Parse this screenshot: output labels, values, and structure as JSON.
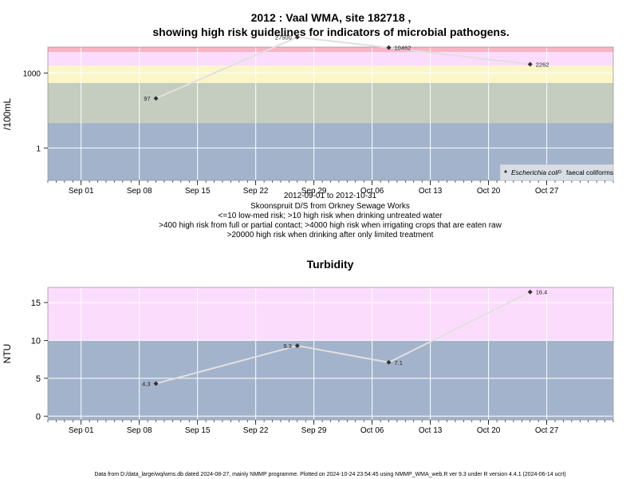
{
  "top_title_line1": "2012 : Vaal WMA, site 182718 ,",
  "top_title_line2": "showing high risk guidelines for indicators of microbial pathogens.",
  "top_ylabel": "/100mL",
  "date_range": "2012-09-01 to 2012-10-31",
  "site_description": "Skoonspruit D/S from Orkney Sewage Works",
  "guideline_lines": [
    "<=10 low-med risk; >10 high risk when drinking untreated water",
    ">400 high risk from full or partial contact; >4000 high risk when irrigating crops that are eaten raw",
    ">20000 high risk when drinking after only limited treatment"
  ],
  "legend": {
    "ecoli": "Escherichia coli",
    "faecal": "faecal coliforms"
  },
  "bottom_title": "Turbidity",
  "bottom_ylabel": "NTU",
  "footer": "Data from D:/data_large/wq/wms.db dated 2024-08-27, mainly NMMP programme. Plotted on 2024-10-24 23:54:45 using NMMP_WMA_web.R ver 9.3 under R version 4.4.1 (2024-06-14 ucrt)",
  "colors": {
    "band_blue": "#a3b3cc",
    "band_green": "#c4cdc0",
    "band_yellow": "#fbf6c8",
    "band_pink": "#fcdcfc",
    "band_red": "#f9b4c4",
    "series_line": "#e0e0e0",
    "point": "#333333"
  },
  "chart_data": [
    {
      "type": "line",
      "title": "2012 : Vaal WMA, site 182718 , showing high risk guidelines for indicators of microbial pathogens.",
      "ylabel": "/100mL",
      "y_scale": "log10",
      "ylim": [
        0.05,
        11000
      ],
      "xlim": [
        "2012-08-28",
        "2012-11-04"
      ],
      "x_ticks": [
        "2012-09-01",
        "2012-09-08",
        "2012-09-15",
        "2012-09-22",
        "2012-09-29",
        "2012-10-06",
        "2012-10-13",
        "2012-10-20",
        "2012-10-27"
      ],
      "x_tick_labels": [
        "Sep 01",
        "Sep 08",
        "Sep 15",
        "Sep 22",
        "Sep 29",
        "Oct 06",
        "Oct 13",
        "Oct 20",
        "Oct 27"
      ],
      "y_ticks": [
        1,
        1000
      ],
      "y_tick_labels": [
        "1",
        "1000"
      ],
      "grid": true,
      "legend_position": "bottom-right",
      "bands": [
        {
          "from": 0.05,
          "to": 10,
          "color": "#a3b3cc"
        },
        {
          "from": 10,
          "to": 400,
          "color": "#c4cdc0"
        },
        {
          "from": 400,
          "to": 2000,
          "color": "#fbf6c8"
        },
        {
          "from": 2000,
          "to": 7000,
          "color": "#fcdcfc"
        },
        {
          "from": 7000,
          "to": 11000,
          "color": "#f9b4c4"
        }
      ],
      "series": [
        {
          "name": "Escherichia coli",
          "x": [
            "2012-09-10",
            "2012-09-27",
            "2012-10-08",
            "2012-10-25"
          ],
          "y": [
            97,
            27500,
            10462,
            2262
          ],
          "labels": [
            "97",
            "27500",
            "10462",
            "2262"
          ]
        }
      ]
    },
    {
      "type": "line",
      "title": "Turbidity",
      "ylabel": "NTU",
      "ylim": [
        -0.5,
        17
      ],
      "xlim": [
        "2012-08-28",
        "2012-11-04"
      ],
      "x_ticks": [
        "2012-09-01",
        "2012-09-08",
        "2012-09-15",
        "2012-09-22",
        "2012-09-29",
        "2012-10-06",
        "2012-10-13",
        "2012-10-20",
        "2012-10-27"
      ],
      "x_tick_labels": [
        "Sep 01",
        "Sep 08",
        "Sep 15",
        "Sep 22",
        "Sep 29",
        "Oct 06",
        "Oct 13",
        "Oct 20",
        "Oct 27"
      ],
      "y_ticks": [
        0,
        5,
        10,
        15
      ],
      "y_tick_labels": [
        "0",
        "5",
        "10",
        "15"
      ],
      "grid": true,
      "bands": [
        {
          "from": -0.5,
          "to": 10,
          "color": "#a3b3cc"
        },
        {
          "from": 10,
          "to": 17,
          "color": "#fcdcfc"
        }
      ],
      "series": [
        {
          "x": [
            "2012-09-10",
            "2012-09-27",
            "2012-10-08",
            "2012-10-25"
          ],
          "y": [
            4.3,
            9.3,
            7.1,
            16.4
          ],
          "labels": [
            "4.3",
            "9.3",
            "7.1",
            "16.4"
          ]
        }
      ]
    }
  ]
}
